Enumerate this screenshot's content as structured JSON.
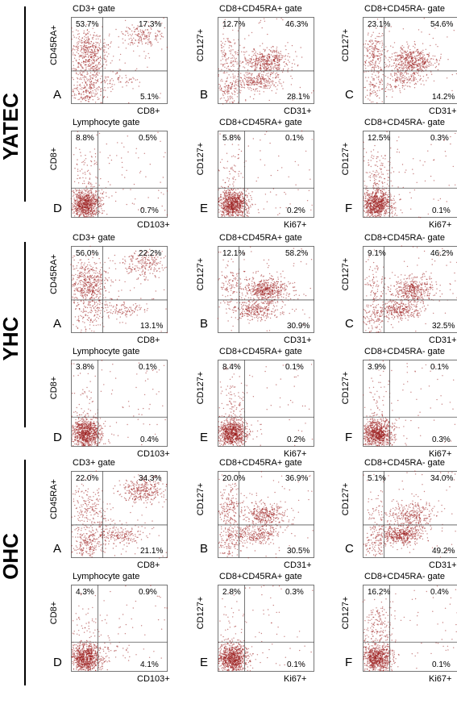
{
  "colors": {
    "dot": "#9b1c1c",
    "axis": "#555555"
  },
  "groups": [
    {
      "label": "YATEC",
      "rows": [
        [
          {
            "letter": "A",
            "gate": "CD3+ gate",
            "ylabel": "CD45RA+",
            "xlabel": "CD8+",
            "q_ul": "53.7%",
            "q_ur": "17.3%",
            "q_lr": "5.1%",
            "q_ll": ""
          },
          {
            "letter": "B",
            "gate": "CD8+CD45RA+ gate",
            "ylabel": "CD127+",
            "xlabel": "CD31+",
            "q_ul": "12.7%",
            "q_ur": "46.3%",
            "q_lr": "28.1%",
            "q_ll": ""
          },
          {
            "letter": "C",
            "gate": "CD8+CD45RA- gate",
            "ylabel": "CD127+",
            "xlabel": "CD31+",
            "q_ul": "23.1%",
            "q_ur": "54.6%",
            "q_lr": "14.2%",
            "q_ll": ""
          }
        ],
        [
          {
            "letter": "D",
            "gate": "Lymphocyte  gate",
            "ylabel": "CD8+",
            "xlabel": "CD103+",
            "q_ul": "8.8%",
            "q_ur": "0.5%",
            "q_lr": "0.7%",
            "q_ll": ""
          },
          {
            "letter": "E",
            "gate": "CD8+CD45RA+ gate",
            "ylabel": "CD127+",
            "xlabel": "Ki67+",
            "q_ul": "5.8%",
            "q_ur": "0.1%",
            "q_lr": "0.2%",
            "q_ll": ""
          },
          {
            "letter": "F",
            "gate": "CD8+CD45RA- gate",
            "ylabel": "CD127+",
            "xlabel": "Ki67+",
            "q_ul": "12.5%",
            "q_ur": "0.3%",
            "q_lr": "0.1%",
            "q_ll": ""
          }
        ]
      ]
    },
    {
      "label": "YHC",
      "rows": [
        [
          {
            "letter": "A",
            "gate": "CD3+ gate",
            "ylabel": "CD45RA+",
            "xlabel": "CD8+",
            "q_ul": "56.0%",
            "q_ur": "22.2%",
            "q_lr": "13.1%",
            "q_ll": ""
          },
          {
            "letter": "B",
            "gate": "CD8+CD45RA+ gate",
            "ylabel": "CD127+",
            "xlabel": "CD31+",
            "q_ul": "12.1%",
            "q_ur": "58.2%",
            "q_lr": "30.9%",
            "q_ll": ""
          },
          {
            "letter": "C",
            "gate": "CD8+CD45RA- gate",
            "ylabel": "CD127+",
            "xlabel": "CD31+",
            "q_ul": "9.1%",
            "q_ur": "46.2%",
            "q_lr": "32.5%",
            "q_ll": ""
          }
        ],
        [
          {
            "letter": "D",
            "gate": "Lymphocyte gate",
            "ylabel": "CD8+",
            "xlabel": "CD103+",
            "q_ul": "3.8%",
            "q_ur": "0.1%",
            "q_lr": "0.4%",
            "q_ll": ""
          },
          {
            "letter": "E",
            "gate": "CD8+CD45RA+ gate",
            "ylabel": "CD127+",
            "xlabel": "Ki67+",
            "q_ul": "8.4%",
            "q_ur": "0.1%",
            "q_lr": "0.2%",
            "q_ll": ""
          },
          {
            "letter": "F",
            "gate": "CD8+CD45RA- gate",
            "ylabel": "CD127+",
            "xlabel": "Ki67+",
            "q_ul": "3.9%",
            "q_ur": "0.1%",
            "q_lr": "0.3%",
            "q_ll": ""
          }
        ]
      ]
    },
    {
      "label": "OHC",
      "rows": [
        [
          {
            "letter": "A",
            "gate": "CD3+ gate",
            "ylabel": "CD45RA+",
            "xlabel": "CD8+",
            "q_ul": "22.0%",
            "q_ur": "34.3%",
            "q_lr": "21.1%",
            "q_ll": ""
          },
          {
            "letter": "B",
            "gate": "CD8+CD45RA+ gate",
            "ylabel": "CD127+",
            "xlabel": "CD31+",
            "q_ul": "20.0%",
            "q_ur": "36.9%",
            "q_lr": "30.5%",
            "q_ll": ""
          },
          {
            "letter": "C",
            "gate": "CD8+CD45RA- gate",
            "ylabel": "CD127+",
            "xlabel": "CD31+",
            "q_ul": "5.1%",
            "q_ur": "34.0%",
            "q_lr": "49.2%",
            "q_ll": ""
          }
        ],
        [
          {
            "letter": "D",
            "gate": "Lymphocyte gate",
            "ylabel": "CD8+",
            "xlabel": "CD103+",
            "q_ul": "4.3%",
            "q_ur": "0.9%",
            "q_lr": "4.1%",
            "q_ll": ""
          },
          {
            "letter": "E",
            "gate": "CD8+CD45RA+ gate",
            "ylabel": "CD127+",
            "xlabel": "Ki67+",
            "q_ul": "2.8%",
            "q_ur": "0.3%",
            "q_lr": "0.1%",
            "q_ll": ""
          },
          {
            "letter": "F",
            "gate": "CD8+CD45RA- gate",
            "ylabel": "CD127+",
            "xlabel": "Ki67+",
            "q_ul": "16.2%",
            "q_ur": "0.4%",
            "q_lr": "0.1%",
            "q_ll": ""
          }
        ]
      ]
    }
  ],
  "chart_data": {
    "type": "scatter",
    "title": "",
    "panels": [
      {
        "group": "YATEC",
        "letter": "A",
        "gate": "CD3+ gate",
        "x": "CD8+",
        "y": "CD45RA+",
        "quadrants": {
          "upper_left": 53.7,
          "upper_right": 17.3,
          "lower_right": 5.1
        }
      },
      {
        "group": "YATEC",
        "letter": "B",
        "gate": "CD8+CD45RA+ gate",
        "x": "CD31+",
        "y": "CD127+",
        "quadrants": {
          "upper_left": 12.7,
          "upper_right": 46.3,
          "lower_right": 28.1
        }
      },
      {
        "group": "YATEC",
        "letter": "C",
        "gate": "CD8+CD45RA- gate",
        "x": "CD31+",
        "y": "CD127+",
        "quadrants": {
          "upper_left": 23.1,
          "upper_right": 54.6,
          "lower_right": 14.2
        }
      },
      {
        "group": "YATEC",
        "letter": "D",
        "gate": "Lymphocyte gate",
        "x": "CD103+",
        "y": "CD8+",
        "quadrants": {
          "upper_left": 8.8,
          "upper_right": 0.5,
          "lower_right": 0.7
        }
      },
      {
        "group": "YATEC",
        "letter": "E",
        "gate": "CD8+CD45RA+ gate",
        "x": "Ki67+",
        "y": "CD127+",
        "quadrants": {
          "upper_left": 5.8,
          "upper_right": 0.1,
          "lower_right": 0.2
        }
      },
      {
        "group": "YATEC",
        "letter": "F",
        "gate": "CD8+CD45RA- gate",
        "x": "Ki67+",
        "y": "CD127+",
        "quadrants": {
          "upper_left": 12.5,
          "upper_right": 0.3,
          "lower_right": 0.1
        }
      },
      {
        "group": "YHC",
        "letter": "A",
        "gate": "CD3+ gate",
        "x": "CD8+",
        "y": "CD45RA+",
        "quadrants": {
          "upper_left": 56.0,
          "upper_right": 22.2,
          "lower_right": 13.1
        }
      },
      {
        "group": "YHC",
        "letter": "B",
        "gate": "CD8+CD45RA+ gate",
        "x": "CD31+",
        "y": "CD127+",
        "quadrants": {
          "upper_left": 12.1,
          "upper_right": 58.2,
          "lower_right": 30.9
        }
      },
      {
        "group": "YHC",
        "letter": "C",
        "gate": "CD8+CD45RA- gate",
        "x": "CD31+",
        "y": "CD127+",
        "quadrants": {
          "upper_left": 9.1,
          "upper_right": 46.2,
          "lower_right": 32.5
        }
      },
      {
        "group": "YHC",
        "letter": "D",
        "gate": "Lymphocyte gate",
        "x": "CD103+",
        "y": "CD8+",
        "quadrants": {
          "upper_left": 3.8,
          "upper_right": 0.1,
          "lower_right": 0.4
        }
      },
      {
        "group": "YHC",
        "letter": "E",
        "gate": "CD8+CD45RA+ gate",
        "x": "Ki67+",
        "y": "CD127+",
        "quadrants": {
          "upper_left": 8.4,
          "upper_right": 0.1,
          "lower_right": 0.2
        }
      },
      {
        "group": "YHC",
        "letter": "F",
        "gate": "CD8+CD45RA- gate",
        "x": "Ki67+",
        "y": "CD127+",
        "quadrants": {
          "upper_left": 3.9,
          "upper_right": 0.1,
          "lower_right": 0.3
        }
      },
      {
        "group": "OHC",
        "letter": "A",
        "gate": "CD3+ gate",
        "x": "CD8+",
        "y": "CD45RA+",
        "quadrants": {
          "upper_left": 22.0,
          "upper_right": 34.3,
          "lower_right": 21.1
        }
      },
      {
        "group": "OHC",
        "letter": "B",
        "gate": "CD8+CD45RA+ gate",
        "x": "CD31+",
        "y": "CD127+",
        "quadrants": {
          "upper_left": 20.0,
          "upper_right": 36.9,
          "lower_right": 30.5
        }
      },
      {
        "group": "OHC",
        "letter": "C",
        "gate": "CD8+CD45RA- gate",
        "x": "CD31+",
        "y": "CD127+",
        "quadrants": {
          "upper_left": 5.1,
          "upper_right": 34.0,
          "lower_right": 49.2
        }
      },
      {
        "group": "OHC",
        "letter": "D",
        "gate": "Lymphocyte gate",
        "x": "CD103+",
        "y": "CD8+",
        "quadrants": {
          "upper_left": 4.3,
          "upper_right": 0.9,
          "lower_right": 4.1
        }
      },
      {
        "group": "OHC",
        "letter": "E",
        "gate": "CD8+CD45RA+ gate",
        "x": "Ki67+",
        "y": "CD127+",
        "quadrants": {
          "upper_left": 2.8,
          "upper_right": 0.3,
          "lower_right": 0.1
        }
      },
      {
        "group": "OHC",
        "letter": "F",
        "gate": "CD8+CD45RA- gate",
        "x": "Ki67+",
        "y": "CD127+",
        "quadrants": {
          "upper_left": 16.2,
          "upper_right": 0.4,
          "lower_right": 0.1
        }
      }
    ]
  }
}
